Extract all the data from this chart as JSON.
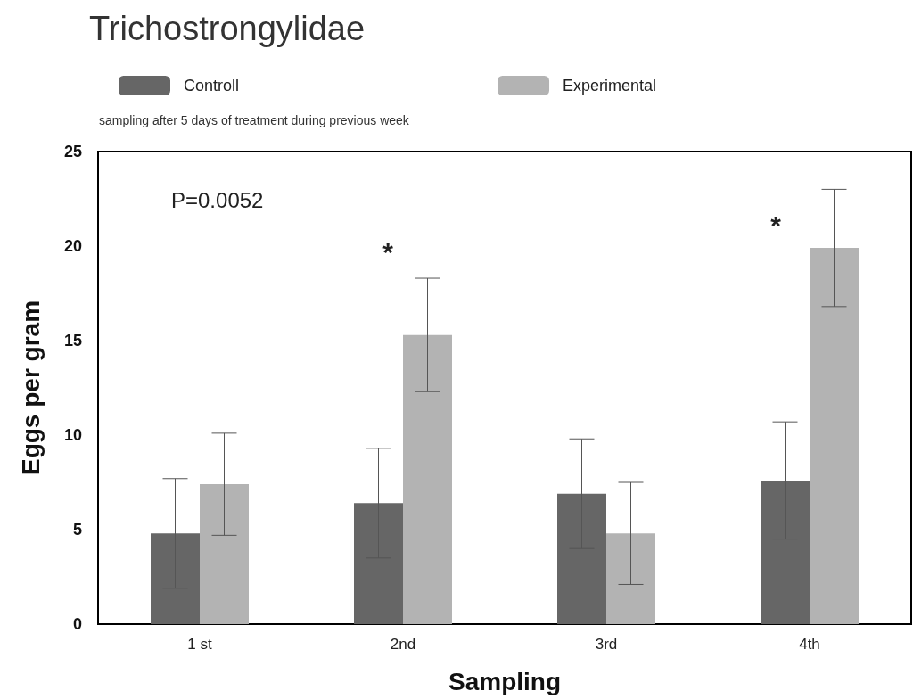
{
  "chart_data": {
    "type": "bar",
    "title": "Trichostrongylidae",
    "subtitle": "sampling after 5 days of treatment during previous week",
    "xlabel": "Sampling",
    "ylabel": "Eggs per gram",
    "categories": [
      "1 st",
      "2nd",
      "3rd",
      "4th"
    ],
    "series": [
      {
        "name": "Controll",
        "color": "#666666",
        "values": [
          4.8,
          6.4,
          6.9,
          7.6
        ],
        "errors": [
          [
            1.9,
            7.7
          ],
          [
            3.5,
            9.3
          ],
          [
            4.0,
            9.8
          ],
          [
            4.5,
            10.7
          ]
        ]
      },
      {
        "name": "Experimental",
        "color": "#b3b3b3",
        "values": [
          7.4,
          15.3,
          4.8,
          19.9
        ],
        "errors": [
          [
            4.7,
            10.1
          ],
          [
            12.3,
            18.3
          ],
          [
            2.1,
            7.5
          ],
          [
            16.8,
            23.0
          ]
        ]
      }
    ],
    "ylim": [
      0,
      25
    ],
    "yticks": [
      0,
      5,
      10,
      15,
      20,
      25
    ],
    "grid": false,
    "legend": "top left",
    "annotations": [
      "P=0.0052",
      "*",
      "*"
    ]
  }
}
